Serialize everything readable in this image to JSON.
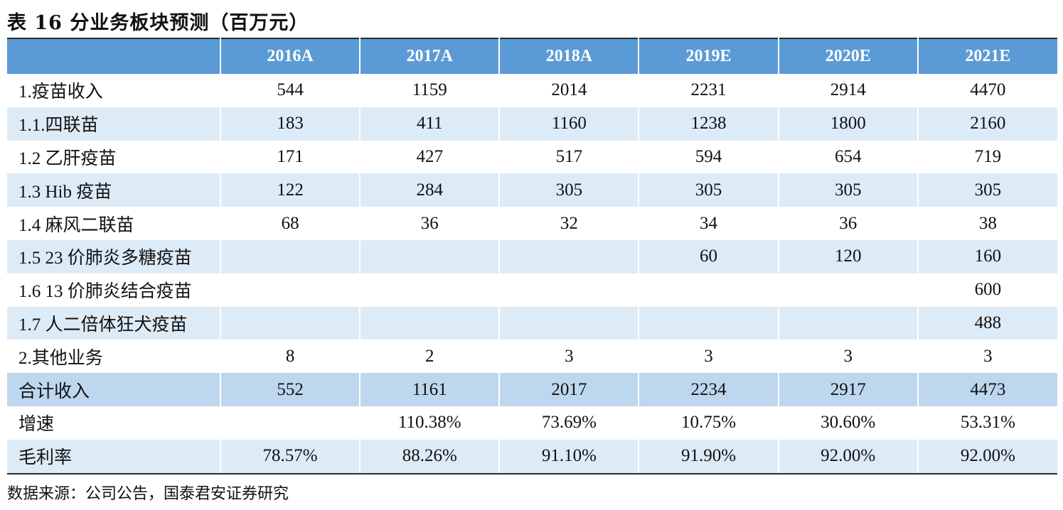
{
  "title": "表 16  分业务板块预测（百万元）",
  "table": {
    "headers": [
      "",
      "2016A",
      "2017A",
      "2018A",
      "2019E",
      "2020E",
      "2021E"
    ],
    "rows": [
      {
        "label": "1.疫苗收入",
        "values": [
          "544",
          "1159",
          "2014",
          "2231",
          "2914",
          "4470"
        ]
      },
      {
        "label": "1.1.四联苗",
        "values": [
          "183",
          "411",
          "1160",
          "1238",
          "1800",
          "2160"
        ]
      },
      {
        "label": "1.2 乙肝疫苗",
        "values": [
          "171",
          "427",
          "517",
          "594",
          "654",
          "719"
        ]
      },
      {
        "label": "1.3 Hib  疫苗",
        "values": [
          "122",
          "284",
          "305",
          "305",
          "305",
          "305"
        ]
      },
      {
        "label": "1.4  麻风二联苗",
        "values": [
          "68",
          "36",
          "32",
          "34",
          "36",
          "38"
        ]
      },
      {
        "label": "1.5 23 价肺炎多糖疫苗",
        "values": [
          "",
          "",
          "",
          "60",
          "120",
          "160"
        ]
      },
      {
        "label": "1.6 13 价肺炎结合疫苗",
        "values": [
          "",
          "",
          "",
          "",
          "",
          "600"
        ]
      },
      {
        "label": "1.7  人二倍体狂犬疫苗",
        "values": [
          "",
          "",
          "",
          "",
          "",
          "488"
        ]
      },
      {
        "label": "2.其他业务",
        "values": [
          "8",
          "2",
          "3",
          "3",
          "3",
          "3"
        ]
      },
      {
        "label": "合计收入",
        "values": [
          "552",
          "1161",
          "2017",
          "2234",
          "2917",
          "4473"
        ]
      },
      {
        "label": "增速",
        "values": [
          "",
          "110.38%",
          "73.69%",
          "10.75%",
          "30.60%",
          "53.31%"
        ]
      },
      {
        "label": "毛利率",
        "values": [
          "78.57%",
          "88.26%",
          "91.10%",
          "91.90%",
          "92.00%",
          "92.00%"
        ]
      }
    ]
  },
  "source": "数据来源：公司公告，国泰君安证券研究",
  "colors": {
    "header_bg": "#5b9bd5",
    "alt_row_bg": "#ddebf7",
    "total_row_bg": "#bdd7ee"
  }
}
